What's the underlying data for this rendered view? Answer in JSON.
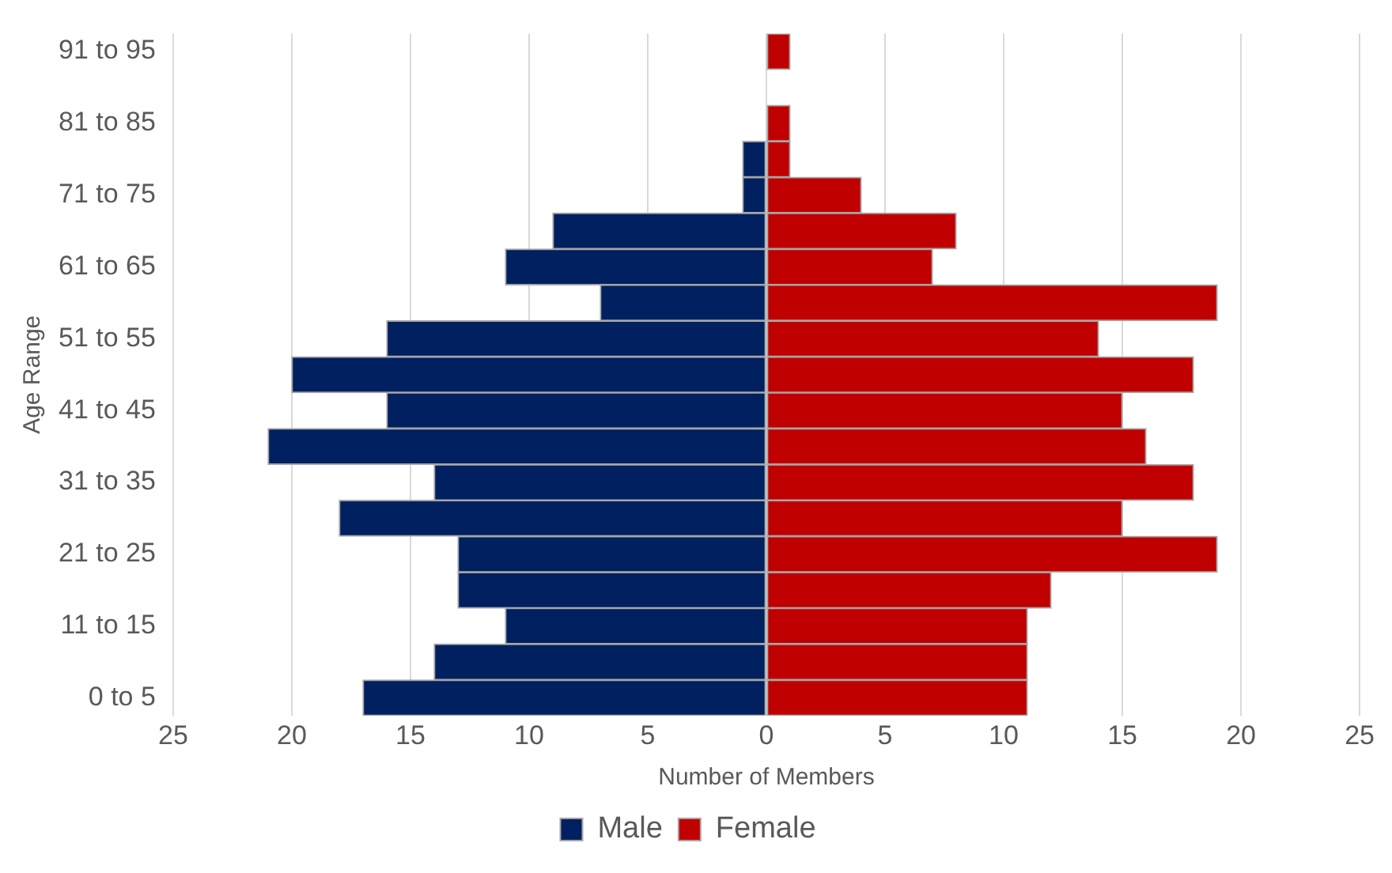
{
  "chart_data": {
    "type": "bar",
    "orientation": "horizontal",
    "stacked": true,
    "xlabel": "Number of Members",
    "ylabel": "Age Range",
    "categories": [
      "91 to 95",
      null,
      "81 to 85",
      null,
      "71 to 75",
      null,
      "61 to 65",
      null,
      "51 to 55",
      null,
      "41 to 45",
      null,
      "31 to 35",
      null,
      "21 to 25",
      null,
      "11 to 15",
      null,
      "0 to 5"
    ],
    "series": [
      {
        "name": "Male",
        "color": "#002060",
        "values": [
          0,
          0,
          0,
          -1,
          -1,
          -9,
          -11,
          -7,
          -16,
          -20,
          -16,
          -21,
          -14,
          -18,
          -13,
          -13,
          -11,
          -14,
          -17
        ]
      },
      {
        "name": "Female",
        "color": "#c00000",
        "values": [
          1,
          0,
          1,
          1,
          4,
          8,
          7,
          19,
          14,
          18,
          15,
          16,
          18,
          15,
          19,
          12,
          11,
          11,
          11
        ]
      }
    ],
    "xlim": [
      -25,
      25
    ],
    "xticks": [
      {
        "value": -25,
        "label": "25"
      },
      {
        "value": -20,
        "label": "20"
      },
      {
        "value": -15,
        "label": "15"
      },
      {
        "value": -10,
        "label": "10"
      },
      {
        "value": -5,
        "label": "5"
      },
      0,
      5,
      10,
      15,
      20,
      25
    ],
    "grid": "x",
    "legend": "bottom"
  }
}
